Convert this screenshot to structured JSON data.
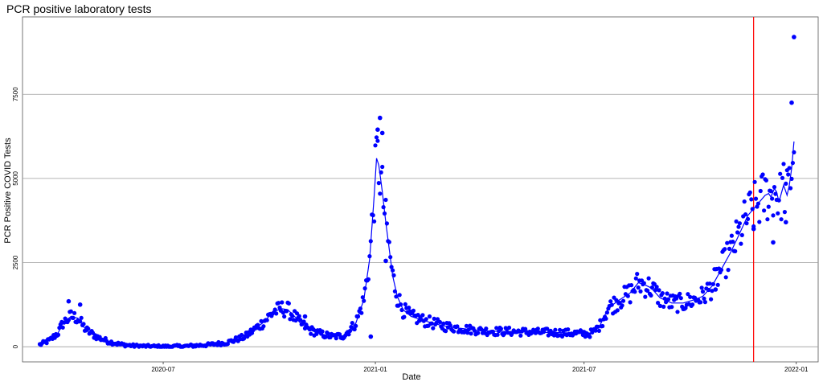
{
  "chart_data": {
    "type": "scatter",
    "title": "PCR positive laboratory tests",
    "xlabel": "Date",
    "ylabel": "PCR Positive COVID Tests",
    "x_ticks": [
      "2020-07",
      "2021-01",
      "2021-07",
      "2022-01"
    ],
    "y_ticks": [
      0,
      2500,
      5000,
      7500
    ],
    "xlim": [
      "2020-03-01",
      "2022-01-20"
    ],
    "ylim": [
      -450,
      9800
    ],
    "grid": true,
    "reference_line": {
      "x": "2021-11-25",
      "color": "#ff0000"
    },
    "colors": {
      "points": "#0000ff",
      "trend": "#0000ff",
      "reference": "#ff0000",
      "grid": "#9e9e9e"
    },
    "trend_x": [
      "2020-03-16",
      "2020-03-25",
      "2020-04-01",
      "2020-04-05",
      "2020-04-12",
      "2020-04-18",
      "2020-04-25",
      "2020-05-05",
      "2020-05-15",
      "2020-05-25",
      "2020-06-05",
      "2020-06-20",
      "2020-07-01",
      "2020-07-20",
      "2020-08-10",
      "2020-08-25",
      "2020-09-10",
      "2020-09-25",
      "2020-10-05",
      "2020-10-12",
      "2020-10-17",
      "2020-10-23",
      "2020-10-28",
      "2020-11-05",
      "2020-11-15",
      "2020-11-25",
      "2020-12-05",
      "2020-12-15",
      "2020-12-22",
      "2020-12-27",
      "2020-12-31",
      "2021-01-02",
      "2021-01-04",
      "2021-01-07",
      "2021-01-10",
      "2021-01-13",
      "2021-01-16",
      "2021-01-20",
      "2021-01-25",
      "2021-02-01",
      "2021-02-10",
      "2021-02-20",
      "2021-03-01",
      "2021-03-15",
      "2021-04-01",
      "2021-04-15",
      "2021-05-01",
      "2021-05-20",
      "2021-06-10",
      "2021-06-25",
      "2021-07-05",
      "2021-07-10",
      "2021-07-15",
      "2021-07-22",
      "2021-08-01",
      "2021-08-10",
      "2021-08-17",
      "2021-08-22",
      "2021-08-28",
      "2021-09-05",
      "2021-09-15",
      "2021-09-25",
      "2021-10-05",
      "2021-10-12",
      "2021-10-20",
      "2021-10-28",
      "2021-11-05",
      "2021-11-12",
      "2021-11-20",
      "2021-11-25",
      "2021-11-30",
      "2021-12-05",
      "2021-12-08",
      "2021-12-10",
      "2021-12-13",
      "2021-12-15",
      "2021-12-17",
      "2021-12-19",
      "2021-12-21",
      "2021-12-24",
      "2021-12-26",
      "2021-12-28",
      "2021-12-30"
    ],
    "trend_y": [
      60,
      200,
      420,
      700,
      900,
      850,
      500,
      280,
      150,
      70,
      30,
      10,
      5,
      15,
      60,
      120,
      300,
      700,
      1050,
      1130,
      1100,
      900,
      700,
      500,
      380,
      300,
      330,
      700,
      1400,
      2600,
      4500,
      5600,
      5400,
      4600,
      3700,
      2900,
      2100,
      1500,
      1100,
      900,
      800,
      700,
      620,
      550,
      480,
      460,
      450,
      430,
      420,
      400,
      380,
      450,
      650,
      1150,
      1400,
      1600,
      1900,
      1850,
      1750,
      1450,
      1300,
      1300,
      1400,
      1500,
      1800,
      2300,
      2800,
      3300,
      3900,
      4100,
      4300,
      4500,
      4550,
      4450,
      4700,
      4600,
      4300,
      4550,
      4800,
      4500,
      4800,
      5300,
      6100
    ],
    "outliers_x": [
      "2020-04-10",
      "2020-04-20",
      "2020-05-06",
      "2020-11-01",
      "2020-12-28",
      "2021-01-03",
      "2021-01-05",
      "2021-01-07",
      "2021-01-10",
      "2021-10-23",
      "2021-11-25",
      "2021-12-12",
      "2021-12-23",
      "2021-12-28",
      "2021-12-30"
    ],
    "outliers_y": [
      1350,
      1250,
      250,
      900,
      300,
      6450,
      6800,
      6350,
      2550,
      1700,
      3500,
      3100,
      3700,
      7250,
      9200
    ]
  }
}
